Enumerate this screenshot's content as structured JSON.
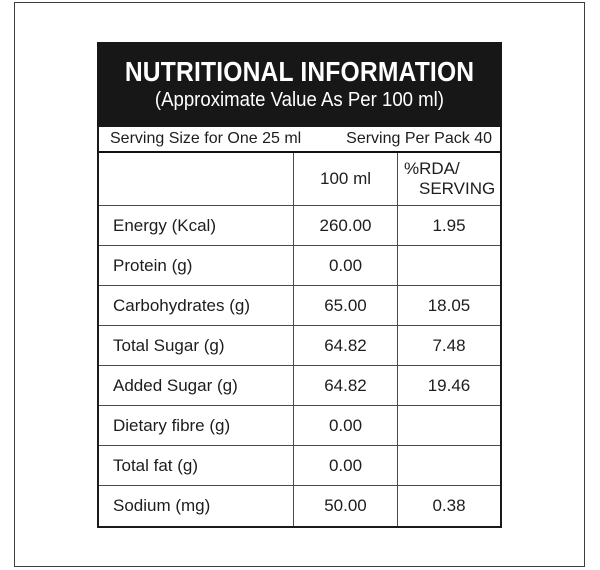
{
  "header": {
    "title": "NUTRITIONAL INFORMATION",
    "subtitle": "(Approximate Value As Per 100 ml)"
  },
  "serving": {
    "size_label": "Serving Size for One 25 ml",
    "pack_label": "Serving Per Pack 40"
  },
  "table": {
    "columns": {
      "nutrient": "",
      "amount": "100 ml",
      "rda_line1": "%RDA/",
      "rda_line2": "SERVING"
    },
    "rows": [
      {
        "label": "Energy (Kcal)",
        "amount": "260.00",
        "rda": "1.95"
      },
      {
        "label": "Protein (g)",
        "amount": "0.00",
        "rda": ""
      },
      {
        "label": "Carbohydrates (g)",
        "amount": "65.00",
        "rda": "18.05"
      },
      {
        "label": "Total Sugar (g)",
        "amount": "64.82",
        "rda": "7.48"
      },
      {
        "label": "Added Sugar (g)",
        "amount": "64.82",
        "rda": "19.46"
      },
      {
        "label": "Dietary fibre (g)",
        "amount": "0.00",
        "rda": ""
      },
      {
        "label": "Total fat (g)",
        "amount": "0.00",
        "rda": ""
      },
      {
        "label": "Sodium (mg)",
        "amount": "50.00",
        "rda": "0.38"
      }
    ]
  },
  "colors": {
    "header_bg": "#171717",
    "header_text": "#ffffff",
    "body_text": "#1d1d1d",
    "grid_border": "#4a4a4a"
  }
}
